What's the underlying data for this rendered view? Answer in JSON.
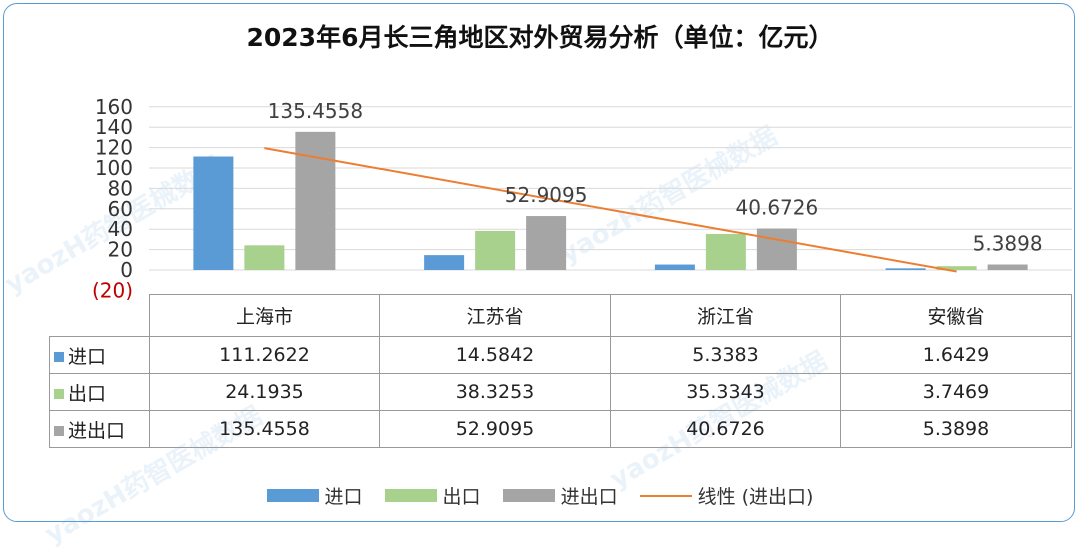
{
  "watermark": "yaozH药智医械数据",
  "chart_data": {
    "type": "bar",
    "title": "2023年6月长三角地区对外贸易分析（单位：亿元）",
    "categories": [
      "上海市",
      "江苏省",
      "浙江省",
      "安徽省"
    ],
    "yticks": [
      "160",
      "140",
      "120",
      "100",
      "80",
      "60",
      "40",
      "20",
      "0",
      "(20)"
    ],
    "ylim": [
      -20,
      160
    ],
    "series": [
      {
        "name": "进口",
        "values": [
          111.2622,
          14.5842,
          5.3383,
          1.6429
        ],
        "values_text": [
          "111.2622",
          "14.5842",
          "5.3383",
          "1.6429"
        ],
        "color": "#5b9bd5"
      },
      {
        "name": "出口",
        "values": [
          24.1935,
          38.3253,
          35.3343,
          3.7469
        ],
        "values_text": [
          "24.1935",
          "38.3253",
          "35.3343",
          "3.7469"
        ],
        "color": "#a9d18e"
      },
      {
        "name": "进出口",
        "values": [
          135.4558,
          52.9095,
          40.6726,
          5.3898
        ],
        "values_text": [
          "135.4558",
          "52.9095",
          "40.6726",
          "5.3898"
        ],
        "color": "#a5a5a5"
      }
    ],
    "data_labels": [
      "135.4558",
      "52.9095",
      "40.6726",
      "5.3898"
    ],
    "trendline": {
      "name": "线性 (进出口)",
      "color": "#ed7d31",
      "start": 119.5,
      "end": -1.5
    },
    "legend_position": "bottom",
    "grid": true,
    "negative_tick_color": "#c00000"
  }
}
